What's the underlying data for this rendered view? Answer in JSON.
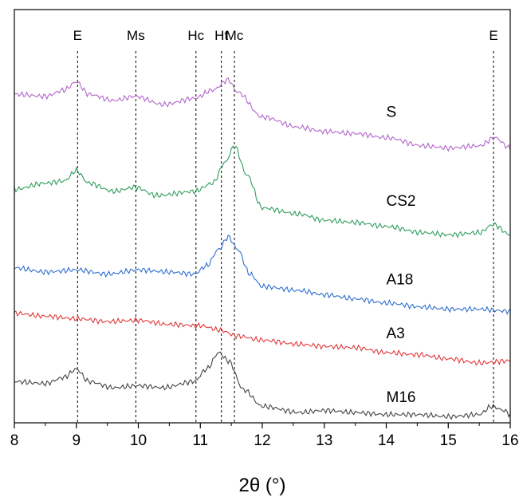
{
  "chart_data": {
    "type": "line",
    "title": "",
    "xlabel": "2θ (°)",
    "ylabel": "",
    "xlim": [
      8,
      16
    ],
    "x_ticks": [
      8,
      9,
      10,
      11,
      12,
      13,
      14,
      15,
      16
    ],
    "x_tick_labels": [
      "8",
      "9",
      "10",
      "11",
      "12",
      "13",
      "14",
      "15",
      "16"
    ],
    "y_axis_visible": false,
    "grid": false,
    "legend": "none",
    "reference_lines": [
      {
        "label": "E",
        "x": 9.02
      },
      {
        "label": "Ms",
        "x": 9.96
      },
      {
        "label": "Hc",
        "x": 10.93
      },
      {
        "label": "Ht",
        "x": 11.34
      },
      {
        "label": "Mc",
        "x": 11.55
      },
      {
        "label": "E",
        "x": 15.73
      }
    ],
    "series": [
      {
        "name": "S",
        "color": "#b266cc",
        "points": [
          [
            8.0,
            0.795
          ],
          [
            8.5,
            0.79
          ],
          [
            8.8,
            0.805
          ],
          [
            9.0,
            0.825
          ],
          [
            9.2,
            0.795
          ],
          [
            9.6,
            0.78
          ],
          [
            9.95,
            0.79
          ],
          [
            10.4,
            0.77
          ],
          [
            10.9,
            0.785
          ],
          [
            11.2,
            0.805
          ],
          [
            11.45,
            0.83
          ],
          [
            11.6,
            0.8
          ],
          [
            12.0,
            0.74
          ],
          [
            12.6,
            0.715
          ],
          [
            13.0,
            0.705
          ],
          [
            13.5,
            0.7
          ],
          [
            14.0,
            0.69
          ],
          [
            14.6,
            0.67
          ],
          [
            15.0,
            0.665
          ],
          [
            15.5,
            0.67
          ],
          [
            15.75,
            0.69
          ],
          [
            16.0,
            0.665
          ]
        ]
      },
      {
        "name": "CS2",
        "color": "#2e9e5c",
        "points": [
          [
            8.0,
            0.565
          ],
          [
            8.5,
            0.58
          ],
          [
            8.8,
            0.585
          ],
          [
            9.0,
            0.61
          ],
          [
            9.2,
            0.58
          ],
          [
            9.6,
            0.56
          ],
          [
            9.95,
            0.57
          ],
          [
            10.3,
            0.55
          ],
          [
            10.9,
            0.56
          ],
          [
            11.2,
            0.58
          ],
          [
            11.4,
            0.63
          ],
          [
            11.55,
            0.67
          ],
          [
            11.75,
            0.6
          ],
          [
            12.0,
            0.52
          ],
          [
            12.6,
            0.505
          ],
          [
            13.0,
            0.49
          ],
          [
            13.5,
            0.485
          ],
          [
            14.0,
            0.475
          ],
          [
            14.6,
            0.46
          ],
          [
            15.0,
            0.455
          ],
          [
            15.5,
            0.46
          ],
          [
            15.73,
            0.48
          ],
          [
            16.0,
            0.455
          ]
        ]
      },
      {
        "name": "A18",
        "color": "#2f6fcf",
        "points": [
          [
            8.0,
            0.375
          ],
          [
            8.5,
            0.365
          ],
          [
            9.0,
            0.37
          ],
          [
            9.5,
            0.36
          ],
          [
            10.0,
            0.37
          ],
          [
            10.5,
            0.365
          ],
          [
            10.9,
            0.36
          ],
          [
            11.1,
            0.38
          ],
          [
            11.3,
            0.42
          ],
          [
            11.45,
            0.45
          ],
          [
            11.6,
            0.42
          ],
          [
            11.8,
            0.36
          ],
          [
            12.0,
            0.33
          ],
          [
            12.6,
            0.32
          ],
          [
            13.0,
            0.31
          ],
          [
            13.5,
            0.3
          ],
          [
            14.0,
            0.29
          ],
          [
            14.6,
            0.28
          ],
          [
            15.0,
            0.275
          ],
          [
            15.5,
            0.275
          ],
          [
            16.0,
            0.27
          ]
        ]
      },
      {
        "name": "A3",
        "color": "#e0393a",
        "points": [
          [
            8.0,
            0.265
          ],
          [
            8.5,
            0.258
          ],
          [
            9.0,
            0.252
          ],
          [
            9.5,
            0.245
          ],
          [
            10.0,
            0.248
          ],
          [
            10.5,
            0.238
          ],
          [
            11.0,
            0.235
          ],
          [
            11.3,
            0.225
          ],
          [
            11.6,
            0.21
          ],
          [
            12.0,
            0.2
          ],
          [
            12.6,
            0.19
          ],
          [
            13.0,
            0.185
          ],
          [
            13.5,
            0.182
          ],
          [
            14.0,
            0.17
          ],
          [
            14.5,
            0.165
          ],
          [
            15.0,
            0.155
          ],
          [
            15.5,
            0.145
          ],
          [
            16.0,
            0.15
          ]
        ]
      },
      {
        "name": "M16",
        "color": "#444444",
        "points": [
          [
            8.0,
            0.1
          ],
          [
            8.5,
            0.095
          ],
          [
            8.8,
            0.11
          ],
          [
            9.0,
            0.13
          ],
          [
            9.2,
            0.1
          ],
          [
            9.6,
            0.085
          ],
          [
            10.0,
            0.09
          ],
          [
            10.4,
            0.085
          ],
          [
            10.9,
            0.1
          ],
          [
            11.1,
            0.13
          ],
          [
            11.3,
            0.17
          ],
          [
            11.45,
            0.15
          ],
          [
            11.7,
            0.08
          ],
          [
            12.0,
            0.04
          ],
          [
            12.6,
            0.025
          ],
          [
            13.0,
            0.03
          ],
          [
            13.5,
            0.025
          ],
          [
            14.0,
            0.02
          ],
          [
            14.5,
            0.02
          ],
          [
            15.0,
            0.015
          ],
          [
            15.5,
            0.02
          ],
          [
            15.7,
            0.04
          ],
          [
            15.9,
            0.03
          ],
          [
            16.0,
            0.02
          ]
        ]
      }
    ],
    "series_label_positions": {
      "S": [
        14.0,
        0.74
      ],
      "CS2": [
        14.0,
        0.525
      ],
      "A18": [
        14.0,
        0.335
      ],
      "A3": [
        14.0,
        0.205
      ],
      "M16": [
        14.0,
        0.05
      ]
    }
  }
}
